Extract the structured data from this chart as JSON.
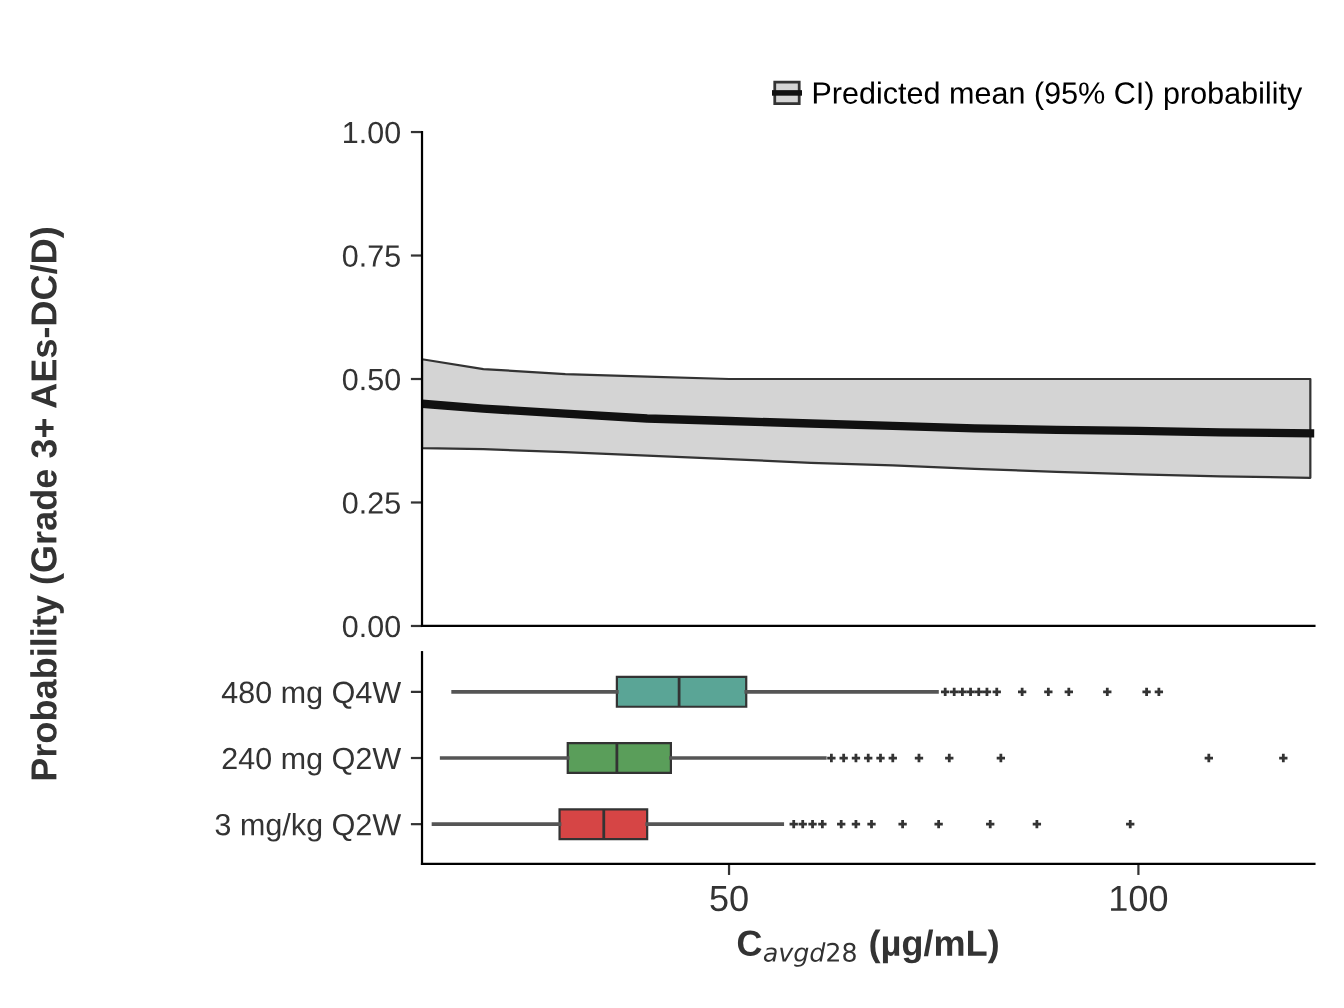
{
  "chart_data": [
    {
      "type": "line",
      "ylabel": "Probability (Grade 3+ AEs-DC/D)",
      "x": [
        12.5,
        20,
        30,
        40,
        50,
        60,
        70,
        80,
        90,
        100,
        110,
        121
      ],
      "series": [
        {
          "name": "Predicted mean (95% CI) probability",
          "color": "#111111",
          "values": [
            0.45,
            0.44,
            0.43,
            0.42,
            0.415,
            0.41,
            0.405,
            0.4,
            0.397,
            0.395,
            0.392,
            0.39
          ],
          "lower": [
            0.36,
            0.358,
            0.352,
            0.345,
            0.338,
            0.33,
            0.325,
            0.318,
            0.312,
            0.307,
            0.303,
            0.3
          ],
          "upper": [
            0.54,
            0.52,
            0.51,
            0.505,
            0.5,
            0.5,
            0.5,
            0.5,
            0.5,
            0.5,
            0.5,
            0.5
          ]
        }
      ],
      "xlim": [
        12.5,
        121.5
      ],
      "ylim": [
        0,
        1
      ],
      "yticks": [
        {
          "value": 0,
          "label": "0.00"
        },
        {
          "value": 0.25,
          "label": "0.25"
        },
        {
          "value": 0.5,
          "label": "0.50"
        },
        {
          "value": 0.75,
          "label": "0.75"
        },
        {
          "value": 1,
          "label": "1.00"
        }
      ],
      "tick_labels": "y",
      "legend": "top right",
      "grid": false,
      "marker": "none",
      "line_style": "solid"
    },
    {
      "type": "box",
      "orientation": "horizontal",
      "xlabel": "C$_{avgd28}$ (µg/mL)",
      "categories": [
        "480 mg Q4W",
        "240 mg Q2W",
        "3 mg/kg Q2W"
      ],
      "colors": [
        "#5aa596",
        "#5a9e5a",
        "#d64545"
      ],
      "boxes": [
        {
          "low": 16.3,
          "q1": 36.3,
          "median": 43.9,
          "q3": 52.1,
          "high": 75.4,
          "outliers": [
            76.4,
            77.5,
            78.5,
            79.5,
            80.5,
            81.5,
            82.7,
            85.8,
            89,
            91.5,
            96.2,
            101,
            102.5
          ]
        },
        {
          "low": 14.9,
          "q1": 30.3,
          "median": 36.3,
          "q3": 42.9,
          "high": 61.7,
          "outliers": [
            62.5,
            64,
            65.5,
            67,
            68.5,
            70,
            73.2,
            76.9,
            83.2,
            108.6,
            117.7
          ]
        },
        {
          "low": 13.9,
          "q1": 29.3,
          "median": 34.7,
          "q3": 40,
          "high": 56.5,
          "outliers": [
            57.9,
            59,
            60.2,
            61.4,
            63.7,
            65.5,
            67.4,
            71.2,
            75.6,
            81.9,
            87.6,
            99
          ]
        }
      ],
      "xlim": [
        12.5,
        121.5
      ],
      "xticks": [
        50,
        100
      ]
    }
  ]
}
